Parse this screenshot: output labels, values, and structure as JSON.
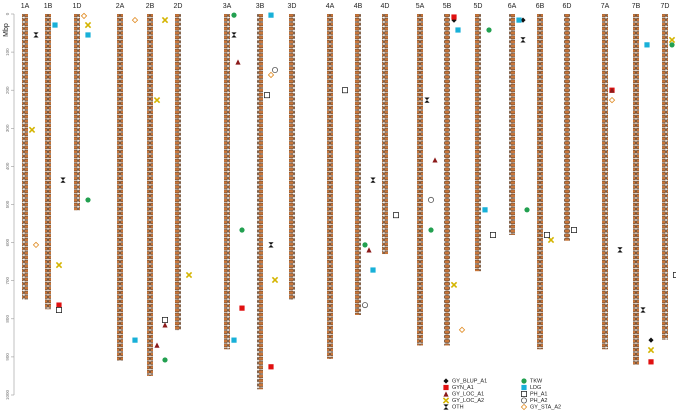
{
  "chart_data": {
    "type": "ideogram",
    "y_label": "Mbp",
    "ylim": [
      0,
      1000
    ],
    "yticks": [
      0,
      100,
      200,
      300,
      400,
      500,
      600,
      700,
      800,
      900,
      1000
    ],
    "chromosome_color": "#c8763a",
    "categories": [
      "1A",
      "1B",
      "1D",
      "2A",
      "2B",
      "2D",
      "3A",
      "3B",
      "3D",
      "4A",
      "4B",
      "4D",
      "5A",
      "5B",
      "5D",
      "6A",
      "6B",
      "6D",
      "7A",
      "7B",
      "7D"
    ],
    "values": [
      750,
      775,
      515,
      910,
      950,
      830,
      880,
      985,
      750,
      905,
      790,
      630,
      870,
      870,
      675,
      580,
      880,
      595,
      880,
      920,
      855
    ],
    "series": [
      {
        "name": "GY_BLUP_A1",
        "color": "#111111",
        "marker": "diamond",
        "x": [
          "5B",
          "6A",
          "7B"
        ],
        "values": [
          16,
          16,
          856
        ]
      },
      {
        "name": "GYN_A1",
        "color": "#e01010",
        "marker": "square",
        "x": [
          "1B",
          "3A",
          "5B",
          "3B",
          "7B",
          "7A"
        ],
        "values": [
          764,
          772,
          8,
          926,
          913,
          200
        ]
      },
      {
        "name": "GY_LOC_A1",
        "color": "#8b1a1a",
        "marker": "triangle",
        "x": [
          "2B",
          "2B",
          "3A",
          "5A",
          "7A",
          "4B"
        ],
        "values": [
          816,
          869,
          126,
          383,
          200,
          619
        ]
      },
      {
        "name": "GY_LOC_A2",
        "color": "#d4b400",
        "marker": "x",
        "x": [
          "1A",
          "1B",
          "2B",
          "2B",
          "2D",
          "3B",
          "5B",
          "6B",
          "7B",
          "7D",
          "1D"
        ],
        "values": [
          304,
          659,
          16,
          226,
          685,
          698,
          711,
          593,
          882,
          68,
          29
        ]
      },
      {
        "name": "OTH",
        "color": "#111111",
        "marker": "bowtie",
        "x": [
          "1A",
          "1B",
          "3A",
          "3B",
          "4B",
          "5A",
          "6A",
          "7A",
          "7B"
        ],
        "values": [
          55,
          436,
          55,
          606,
          436,
          226,
          68,
          619,
          777
        ]
      },
      {
        "name": "TKW",
        "color": "#22a050",
        "marker": "circle",
        "x": [
          "3A",
          "4B",
          "5A",
          "6A",
          "7D",
          "1D",
          "2B",
          "3A",
          "5D"
        ],
        "values": [
          567,
          606,
          567,
          514,
          81,
          488,
          908,
          3,
          42
        ]
      },
      {
        "name": "LDG",
        "color": "#18b0d8",
        "marker": "square",
        "x": [
          "1B",
          "1D",
          "2A",
          "3A",
          "3B",
          "4B",
          "5D",
          "7B",
          "7D",
          "6A",
          "5B"
        ],
        "values": [
          29,
          55,
          856,
          856,
          3,
          672,
          514,
          81,
          751,
          16,
          42
        ]
      },
      {
        "name": "PH_A1",
        "color": "#111111",
        "marker": "square-open",
        "x": [
          "1B",
          "2B",
          "3B",
          "4D",
          "5D",
          "6B",
          "7D",
          "4A",
          "6D"
        ],
        "values": [
          777,
          803,
          213,
          528,
          580,
          580,
          685,
          200,
          567
        ]
      },
      {
        "name": "PH_A2",
        "color": "#555555",
        "marker": "circle-open",
        "x": [
          "3B",
          "4B",
          "5A"
        ],
        "values": [
          147,
          764,
          488
        ]
      },
      {
        "name": "GY_STA_A2",
        "color": "#e08a20",
        "marker": "diamond-open",
        "x": [
          "1D",
          "3B",
          "5B",
          "7A",
          "1A",
          "2A"
        ],
        "values": [
          5,
          160,
          829,
          226,
          606,
          16
        ]
      }
    ]
  }
}
